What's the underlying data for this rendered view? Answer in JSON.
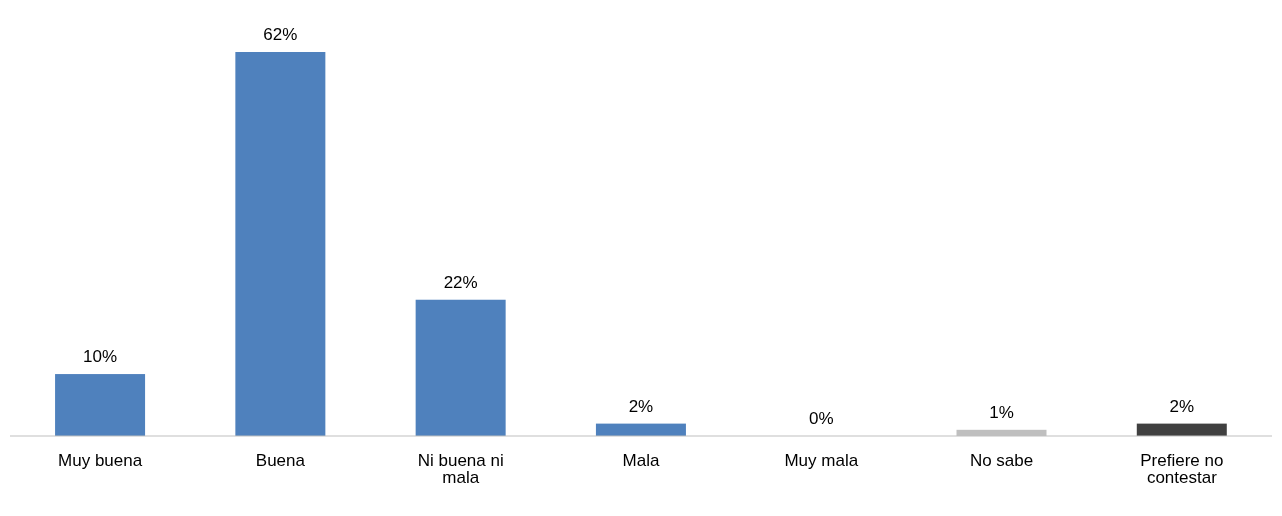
{
  "chart_data": {
    "type": "bar",
    "categories": [
      "Muy buena",
      "Buena",
      "Ni buena ni mala",
      "Mala",
      "Muy mala",
      "No sabe",
      "Prefiere no contestar"
    ],
    "values": [
      10,
      62,
      22,
      2,
      0,
      1,
      2
    ],
    "colors": [
      "#4f81bd",
      "#4f81bd",
      "#4f81bd",
      "#4f81bd",
      "#4f81bd",
      "#bfbfbf",
      "#404040"
    ],
    "value_labels": [
      "10%",
      "62%",
      "22%",
      "2%",
      "0%",
      "1%",
      "2%"
    ],
    "grid": false,
    "legend": false
  }
}
